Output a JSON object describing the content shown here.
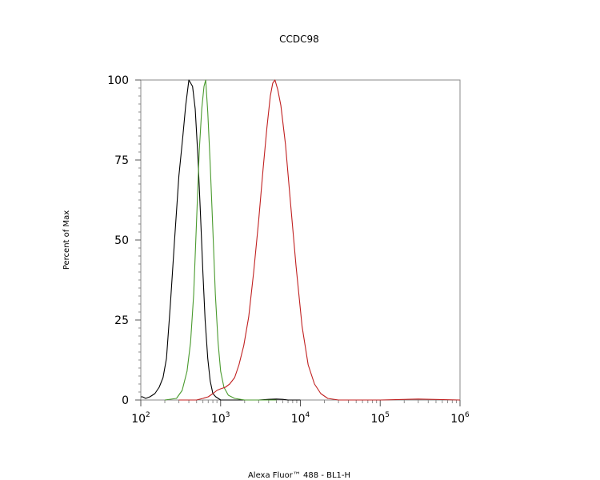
{
  "chart_data": {
    "type": "line",
    "title": "CCDC98",
    "xlabel": "Alexa Fluor™ 488 - BL1-H",
    "ylabel": "Percent of Max",
    "x_scale": "log",
    "xlim": [
      100,
      1000000
    ],
    "ylim": [
      0,
      100
    ],
    "x_ticks": [
      {
        "value": 100,
        "base": "10",
        "exp": "2"
      },
      {
        "value": 1000,
        "base": "10",
        "exp": "3"
      },
      {
        "value": 10000,
        "base": "10",
        "exp": "4"
      },
      {
        "value": 100000,
        "base": "10",
        "exp": "5"
      },
      {
        "value": 1000000,
        "base": "10",
        "exp": "6"
      }
    ],
    "y_ticks": [
      {
        "value": 0,
        "label": "0"
      },
      {
        "value": 25,
        "label": "25"
      },
      {
        "value": 50,
        "label": "50"
      },
      {
        "value": 75,
        "label": "75"
      },
      {
        "value": 100,
        "label": "100"
      }
    ],
    "series": [
      {
        "color": "#000000",
        "points": [
          [
            100,
            1
          ],
          [
            105,
            1
          ],
          [
            115,
            0.5
          ],
          [
            130,
            1
          ],
          [
            150,
            2
          ],
          [
            170,
            4
          ],
          [
            190,
            7
          ],
          [
            210,
            13
          ],
          [
            235,
            30
          ],
          [
            265,
            50
          ],
          [
            300,
            70
          ],
          [
            335,
            82
          ],
          [
            365,
            92
          ],
          [
            400,
            100
          ],
          [
            445,
            98
          ],
          [
            480,
            91
          ],
          [
            520,
            76
          ],
          [
            560,
            58
          ],
          [
            600,
            40
          ],
          [
            640,
            25
          ],
          [
            690,
            13
          ],
          [
            740,
            6
          ],
          [
            800,
            2
          ],
          [
            870,
            1
          ],
          [
            1000,
            0
          ],
          [
            2000,
            0
          ],
          [
            3000,
            0
          ],
          [
            4000,
            0.2
          ],
          [
            5000,
            0.3
          ],
          [
            6000,
            0.2
          ],
          [
            7000,
            0
          ],
          [
            10000,
            0
          ]
        ]
      },
      {
        "color": "#4a9a2e",
        "points": [
          [
            200,
            0
          ],
          [
            280,
            0.5
          ],
          [
            330,
            3
          ],
          [
            380,
            9
          ],
          [
            420,
            18
          ],
          [
            460,
            33
          ],
          [
            500,
            56
          ],
          [
            540,
            78
          ],
          [
            580,
            91
          ],
          [
            620,
            98
          ],
          [
            650,
            100
          ],
          [
            690,
            90
          ],
          [
            740,
            74
          ],
          [
            800,
            53
          ],
          [
            860,
            33
          ],
          [
            930,
            18
          ],
          [
            1000,
            9
          ],
          [
            1100,
            4
          ],
          [
            1250,
            1.5
          ],
          [
            1500,
            0.5
          ],
          [
            2000,
            0
          ],
          [
            3000,
            0
          ],
          [
            5000,
            0
          ]
        ]
      },
      {
        "color": "#c02020",
        "points": [
          [
            300,
            0
          ],
          [
            500,
            0
          ],
          [
            600,
            0.5
          ],
          [
            700,
            1
          ],
          [
            800,
            2
          ],
          [
            900,
            3
          ],
          [
            1000,
            3.5
          ],
          [
            1150,
            4
          ],
          [
            1300,
            5
          ],
          [
            1500,
            7
          ],
          [
            1700,
            11
          ],
          [
            1950,
            17
          ],
          [
            2250,
            26
          ],
          [
            2600,
            40
          ],
          [
            3000,
            56
          ],
          [
            3400,
            72
          ],
          [
            3800,
            85
          ],
          [
            4200,
            95
          ],
          [
            4500,
            99
          ],
          [
            4800,
            100
          ],
          [
            5200,
            97
          ],
          [
            5700,
            92
          ],
          [
            6500,
            80
          ],
          [
            7500,
            62
          ],
          [
            8800,
            42
          ],
          [
            10500,
            23
          ],
          [
            12500,
            11
          ],
          [
            15000,
            5
          ],
          [
            18000,
            2
          ],
          [
            22000,
            0.5
          ],
          [
            30000,
            0
          ],
          [
            100000,
            0
          ],
          [
            300000,
            0.3
          ],
          [
            1000000,
            0
          ]
        ]
      }
    ]
  }
}
